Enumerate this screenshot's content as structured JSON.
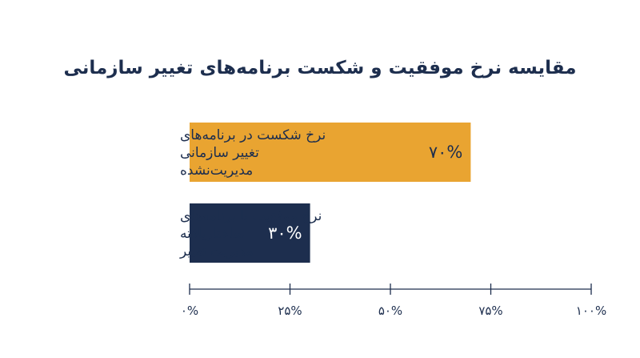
{
  "chart_data": {
    "type": "bar",
    "orientation": "horizontal",
    "title": "مقایسه نرخ موفقیت و شکست برنامه‌های تغییر سازمانی",
    "categories": [
      [
        "نرخ شکست در برنامه‌های",
        "تغییر سازمانی",
        "مدیریت‌نشده"
      ],
      [
        "نرخ موفقیت با برنامه‌های",
        "ساختاریافته",
        "مدیریت تغییر"
      ]
    ],
    "values": [
      70,
      30
    ],
    "value_labels": [
      "۷۰%",
      "۳۰%"
    ],
    "colors": [
      "#E9A431",
      "#1D2E4E"
    ],
    "xlim": [
      0,
      100
    ],
    "ticks": [
      0,
      25,
      50,
      75,
      100
    ],
    "tick_labels": [
      "۰%",
      "۲۵%",
      "۵۰%",
      "۷۵%",
      "۱۰۰%"
    ],
    "grid": false,
    "legend": "none",
    "text_color": "#1D2E4E",
    "value_label_colors": [
      "#1D2E4E",
      "#FFFFFF"
    ]
  }
}
